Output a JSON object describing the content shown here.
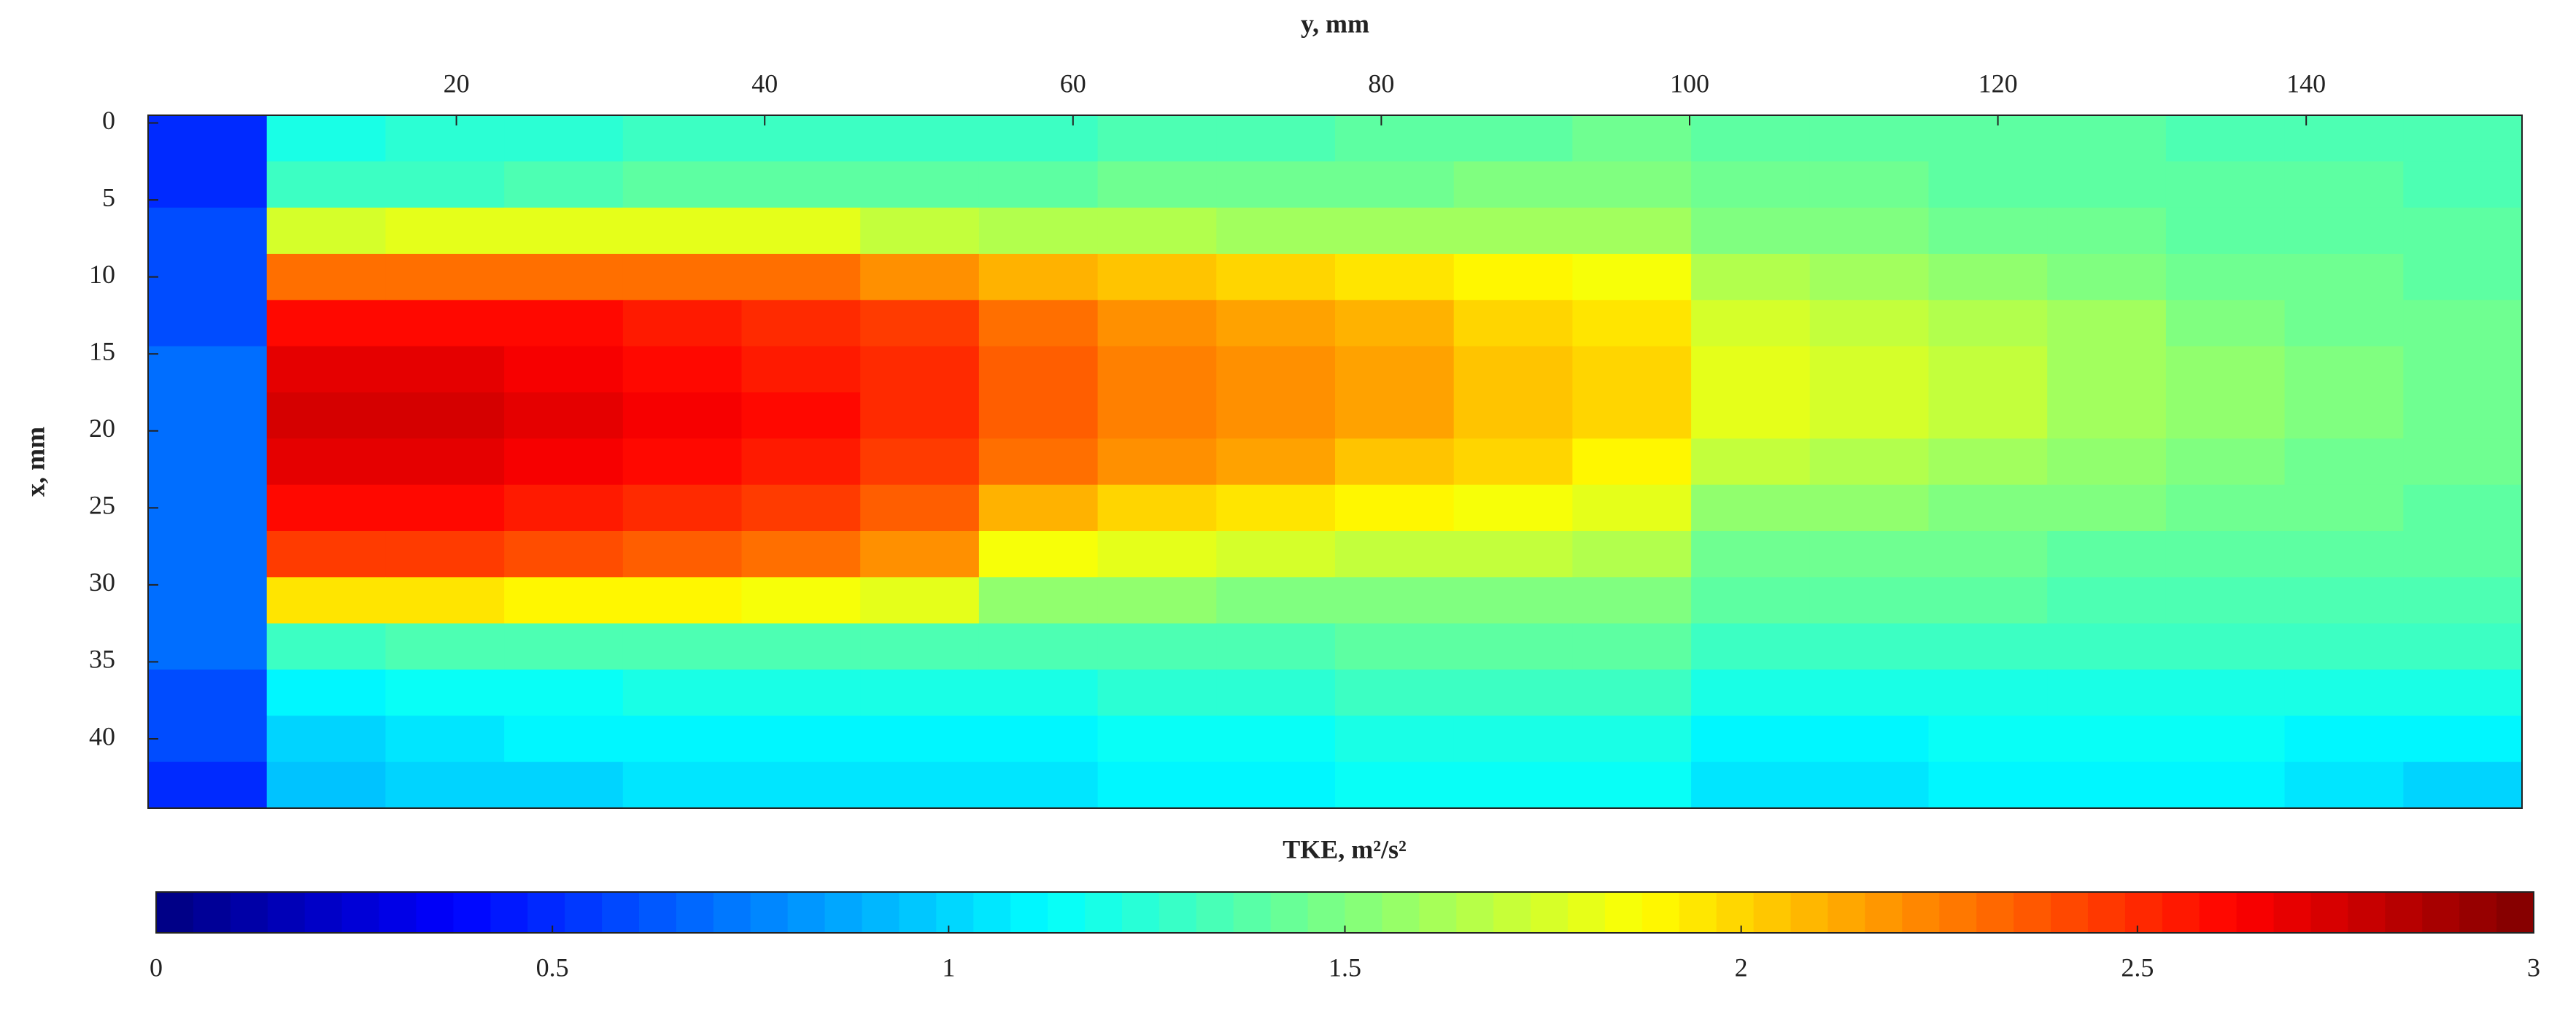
{
  "chart_data": {
    "type": "heatmap",
    "x_label": "y, mm",
    "y_label": "x, mm",
    "colormap": "jet",
    "xlim": [
      0,
      154
    ],
    "ylim": [
      -0.5,
      44.5
    ],
    "y_reversed": true,
    "x_axis_position": "top",
    "xticks": [
      20,
      40,
      60,
      80,
      100,
      120,
      140
    ],
    "yticks": [
      0,
      5,
      10,
      15,
      20,
      25,
      30,
      35,
      40
    ],
    "x": [
      3.85,
      11.55,
      19.25,
      26.95,
      34.65,
      42.35,
      50.05,
      57.75,
      65.45,
      73.15,
      80.85,
      88.55,
      96.25,
      103.95,
      111.65,
      119.35,
      127.05,
      134.75,
      142.45,
      150.15
    ],
    "y": [
      1,
      4,
      7,
      10,
      13,
      16,
      19,
      22,
      25,
      28,
      31,
      34,
      37,
      40,
      43
    ],
    "values": [
      [
        0.5,
        1.2,
        1.25,
        1.25,
        1.3,
        1.3,
        1.3,
        1.3,
        1.35,
        1.35,
        1.4,
        1.4,
        1.45,
        1.4,
        1.4,
        1.4,
        1.4,
        1.35,
        1.35,
        1.35
      ],
      [
        0.5,
        1.3,
        1.3,
        1.35,
        1.4,
        1.4,
        1.4,
        1.4,
        1.45,
        1.45,
        1.45,
        1.5,
        1.5,
        1.45,
        1.45,
        1.4,
        1.4,
        1.4,
        1.4,
        1.35
      ],
      [
        0.6,
        1.75,
        1.8,
        1.8,
        1.8,
        1.8,
        1.7,
        1.65,
        1.65,
        1.6,
        1.6,
        1.6,
        1.6,
        1.5,
        1.5,
        1.45,
        1.45,
        1.4,
        1.4,
        1.4
      ],
      [
        0.6,
        2.3,
        2.3,
        2.3,
        2.3,
        2.3,
        2.2,
        2.1,
        2.05,
        2.0,
        1.95,
        1.9,
        1.85,
        1.65,
        1.6,
        1.55,
        1.5,
        1.45,
        1.45,
        1.4
      ],
      [
        0.6,
        2.6,
        2.6,
        2.6,
        2.55,
        2.5,
        2.45,
        2.3,
        2.2,
        2.15,
        2.1,
        2.0,
        1.95,
        1.75,
        1.7,
        1.65,
        1.6,
        1.5,
        1.45,
        1.45
      ],
      [
        0.7,
        2.7,
        2.7,
        2.65,
        2.6,
        2.55,
        2.5,
        2.35,
        2.25,
        2.2,
        2.15,
        2.05,
        2.0,
        1.8,
        1.75,
        1.7,
        1.6,
        1.55,
        1.5,
        1.45
      ],
      [
        0.7,
        2.75,
        2.75,
        2.7,
        2.65,
        2.6,
        2.5,
        2.35,
        2.25,
        2.2,
        2.15,
        2.05,
        2.0,
        1.8,
        1.75,
        1.7,
        1.6,
        1.55,
        1.5,
        1.45
      ],
      [
        0.7,
        2.7,
        2.7,
        2.65,
        2.6,
        2.55,
        2.45,
        2.3,
        2.2,
        2.15,
        2.05,
        2.0,
        1.9,
        1.7,
        1.65,
        1.6,
        1.55,
        1.5,
        1.45,
        1.45
      ],
      [
        0.7,
        2.6,
        2.6,
        2.55,
        2.5,
        2.45,
        2.35,
        2.1,
        2.0,
        1.95,
        1.9,
        1.85,
        1.8,
        1.55,
        1.55,
        1.5,
        1.5,
        1.45,
        1.45,
        1.4
      ],
      [
        0.7,
        2.45,
        2.45,
        2.4,
        2.35,
        2.3,
        2.2,
        1.85,
        1.8,
        1.75,
        1.7,
        1.7,
        1.65,
        1.45,
        1.45,
        1.45,
        1.4,
        1.4,
        1.4,
        1.4
      ],
      [
        0.7,
        1.95,
        1.95,
        1.9,
        1.9,
        1.85,
        1.8,
        1.55,
        1.55,
        1.5,
        1.5,
        1.5,
        1.5,
        1.4,
        1.4,
        1.4,
        1.35,
        1.35,
        1.35,
        1.35
      ],
      [
        0.7,
        1.3,
        1.35,
        1.35,
        1.35,
        1.35,
        1.35,
        1.35,
        1.35,
        1.35,
        1.4,
        1.4,
        1.4,
        1.3,
        1.3,
        1.3,
        1.3,
        1.3,
        1.3,
        1.3
      ],
      [
        0.6,
        1.1,
        1.15,
        1.15,
        1.2,
        1.2,
        1.2,
        1.2,
        1.25,
        1.25,
        1.3,
        1.3,
        1.3,
        1.2,
        1.2,
        1.2,
        1.2,
        1.2,
        1.2,
        1.2
      ],
      [
        0.6,
        1.0,
        1.05,
        1.1,
        1.1,
        1.1,
        1.1,
        1.1,
        1.15,
        1.15,
        1.2,
        1.2,
        1.2,
        1.1,
        1.1,
        1.15,
        1.15,
        1.15,
        1.1,
        1.1
      ],
      [
        0.5,
        0.95,
        1.0,
        1.0,
        1.05,
        1.05,
        1.05,
        1.05,
        1.1,
        1.1,
        1.15,
        1.15,
        1.15,
        1.05,
        1.05,
        1.1,
        1.1,
        1.1,
        1.05,
        1.0
      ]
    ],
    "colorbar": {
      "label": "TKE, m²/s²",
      "lim": [
        0,
        3
      ],
      "ticks": [
        0,
        0.5,
        1,
        1.5,
        2,
        2.5,
        3
      ]
    }
  }
}
